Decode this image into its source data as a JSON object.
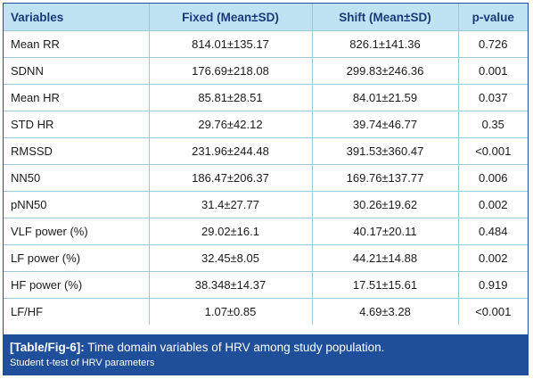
{
  "table": {
    "headers": [
      "Variables",
      "Fixed (Mean±SD)",
      "Shift (Mean±SD)",
      "p-value"
    ],
    "rows": [
      [
        "Mean RR",
        "814.01±135.17",
        "826.1±141.36",
        "0.726"
      ],
      [
        "SDNN",
        "176.69±218.08",
        "299.83±246.36",
        "0.001"
      ],
      [
        "Mean HR",
        "85.81±28.51",
        "84.01±21.59",
        "0.037"
      ],
      [
        "STD HR",
        "29.76±42.12",
        "39.74±46.77",
        "0.35"
      ],
      [
        "RMSSD",
        "231.96±244.48",
        "391.53±360.47",
        "<0.001"
      ],
      [
        "NN50",
        "186.47±206.37",
        "169.76±137.77",
        "0.006"
      ],
      [
        "pNN50",
        "31.4±27.77",
        "30.26±19.62",
        "0.002"
      ],
      [
        "VLF power (%)",
        "29.02±16.1",
        "40.17±20.11",
        "0.484"
      ],
      [
        "LF power (%)",
        "32.45±8.05",
        "44.21±14.88",
        "0.002"
      ],
      [
        "HF power (%)",
        "38.348±14.37",
        "17.51±15.61",
        "0.919"
      ],
      [
        "LF/HF",
        "1.07±0.85",
        "4.69±3.28",
        "<0.001"
      ]
    ]
  },
  "caption": {
    "label": "[Table/Fig-6]:",
    "text": " Time domain variables of HRV among study population.",
    "note": "Student t-test of HRV parameters"
  },
  "colors": {
    "header_bg": "#bfe3f2",
    "header_text": "#1a3a7a",
    "caption_bg": "#1f4f9a"
  }
}
